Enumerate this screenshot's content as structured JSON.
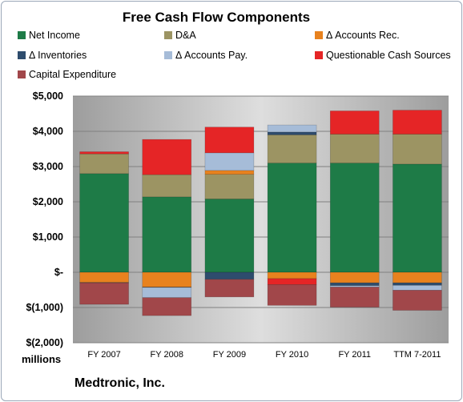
{
  "chart_data": {
    "type": "bar",
    "stacked": true,
    "title": "Free Cash Flow Components",
    "ylabel_unit": "millions",
    "footer": "Medtronic, Inc.",
    "ylim": [
      -2000,
      5000
    ],
    "yticks": [
      "$(2,000)",
      "$(1,000)",
      "$-",
      "$1,000",
      "$2,000",
      "$3,000",
      "$4,000",
      "$5,000"
    ],
    "ytick_values": [
      -2000,
      -1000,
      0,
      1000,
      2000,
      3000,
      4000,
      5000
    ],
    "grid": true,
    "categories": [
      "FY 2007",
      "FY 2008",
      "FY 2009",
      "FY 2010",
      "FY 2011",
      "TTM 7-2011"
    ],
    "series": [
      {
        "name": "Net Income",
        "color": "#1e7b47",
        "values": [
          2800,
          2140,
          2080,
          3100,
          3100,
          3070
        ]
      },
      {
        "name": "D&A",
        "color": "#9c9463",
        "values": [
          560,
          630,
          700,
          800,
          820,
          850
        ]
      },
      {
        "name": "Δ Accounts Rec.",
        "color": "#e8821e",
        "values": [
          -290,
          -420,
          110,
          -180,
          -300,
          -300
        ]
      },
      {
        "name": "Δ Inventories",
        "color": "#2e4c6d",
        "values": [
          -10,
          -10,
          -200,
          80,
          -80,
          -70
        ]
      },
      {
        "name": "Δ Accounts Pay.",
        "color": "#a6bcd8",
        "values": [
          0,
          -290,
          500,
          200,
          -40,
          -140
        ]
      },
      {
        "name": "Questionable Cash Sources",
        "color": "#e52526",
        "values": [
          60,
          1000,
          730,
          -170,
          660,
          680
        ]
      },
      {
        "name": "Capital Expenditure",
        "color": "#a1474a",
        "values": [
          -610,
          -510,
          -500,
          -590,
          -570,
          -570
        ]
      }
    ]
  }
}
